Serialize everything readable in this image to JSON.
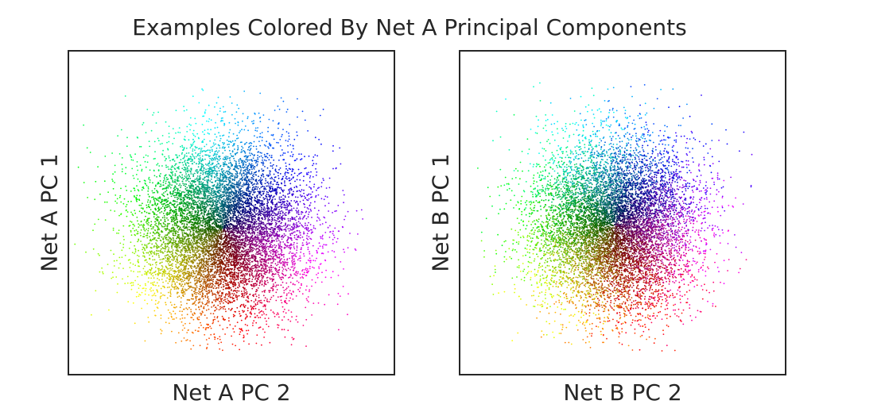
{
  "title": "Examples Colored By Net A Principal Components",
  "chart_data": [
    {
      "type": "scatter",
      "title": "",
      "xlabel": "Net A PC 2",
      "ylabel": "Net A PC 1",
      "xticks": [],
      "yticks": [],
      "grid": false,
      "legend": "none",
      "xlim": [
        -3.8,
        4.2
      ],
      "ylim": [
        -3.6,
        4.4
      ],
      "cloud": {
        "center": [
          0.0,
          0.0
        ],
        "sigma": [
          1.05,
          1.1
        ],
        "extent": {
          "x": [
            -3.8,
            3.6
          ],
          "y": [
            -3.0,
            3.5
          ]
        },
        "n_points": 9000
      },
      "color_encoding": "hue = angle of point in Net A PC space; darkness increases toward the center",
      "hue_map": [
        {
          "direction": "upper",
          "color": "#00bcd4"
        },
        {
          "direction": "upper-right",
          "color": "#0000c8"
        },
        {
          "direction": "right",
          "color": "#8000c8"
        },
        {
          "direction": "lower-right",
          "color": "#e000c0"
        },
        {
          "direction": "lower",
          "color": "#e0003a"
        },
        {
          "direction": "lower-left",
          "color": "#ff6a00"
        },
        {
          "direction": "left",
          "color": "#f0f000"
        },
        {
          "direction": "upper-left",
          "color": "#30d000"
        }
      ]
    },
    {
      "type": "scatter",
      "title": "",
      "xlabel": "Net B PC 2",
      "ylabel": "Net B PC 1",
      "xticks": [],
      "yticks": [],
      "grid": false,
      "legend": "none",
      "xlim": [
        -3.8,
        4.2
      ],
      "ylim": [
        -3.6,
        4.4
      ],
      "cloud": {
        "center": [
          0.0,
          0.1
        ],
        "sigma": [
          1.0,
          1.1
        ],
        "extent": {
          "x": [
            -3.4,
            3.6
          ],
          "y": [
            -3.0,
            3.6
          ]
        },
        "n_points": 9000
      },
      "color_encoding": "colors carried over from Net A PC angle; pattern rotated and mixed in Net B space",
      "hue_map": [
        {
          "direction": "upper",
          "color": "#00bcd4"
        },
        {
          "direction": "upper-right",
          "color": "#0000c8"
        },
        {
          "direction": "right",
          "color": "#8000c8"
        },
        {
          "direction": "lower-right",
          "color": "#e000c0"
        },
        {
          "direction": "lower",
          "color": "#e0003a"
        },
        {
          "direction": "lower-left",
          "color": "#ff6a00"
        },
        {
          "direction": "left",
          "color": "#f0f000"
        },
        {
          "direction": "upper-left",
          "color": "#30d000"
        }
      ]
    }
  ],
  "colors": {
    "frame": "#262626",
    "text": "#262626",
    "background": "#ffffff"
  }
}
